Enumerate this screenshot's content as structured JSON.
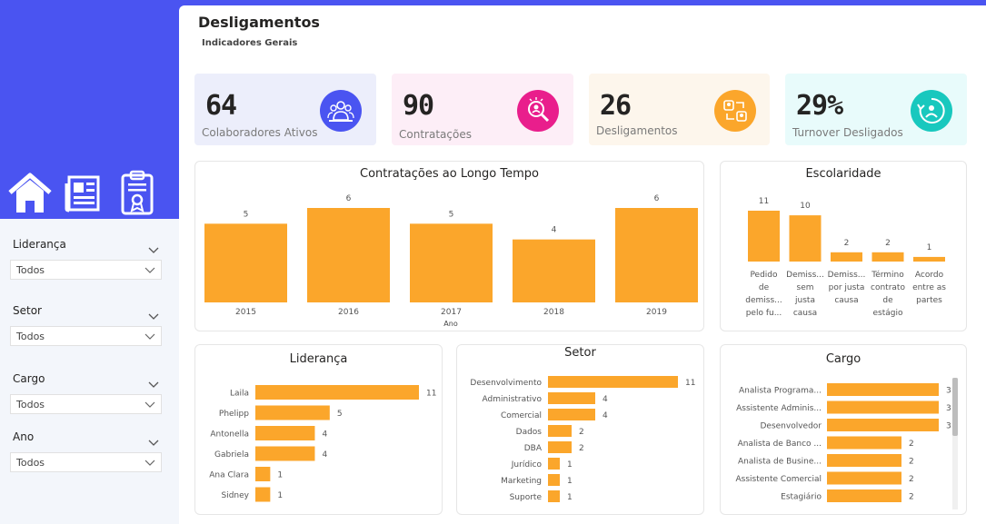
{
  "header": {
    "title": "Desligamentos",
    "subtitle": "Indicadores Gerais"
  },
  "nav": {
    "icons": [
      "home-icon",
      "newspaper-icon",
      "certificate-icon"
    ]
  },
  "filters": [
    {
      "label": "Liderança",
      "value": "Todos"
    },
    {
      "label": "Setor",
      "value": "Todos"
    },
    {
      "label": "Cargo",
      "value": "Todos"
    },
    {
      "label": "Ano",
      "value": "Todos"
    }
  ],
  "kpis": [
    {
      "value": "64",
      "label": "Colaboradores Ativos",
      "icon": "team-icon",
      "bg": "#eceefb",
      "iconColor": "#4a54f1"
    },
    {
      "value": "90",
      "label": "Contratações",
      "icon": "search-person-icon",
      "bg": "#fdeef7",
      "iconColor": "#e91e8c"
    },
    {
      "value": "26",
      "label": "Desligamentos",
      "icon": "exchange-people-icon",
      "bg": "#fdf6ec",
      "iconColor": "#fba62b"
    },
    {
      "value": "29%",
      "label": "Turnover Desligados",
      "icon": "refresh-person-icon",
      "bg": "#e8fbfb",
      "iconColor": "#18c8be"
    }
  ],
  "colors": {
    "bar": "#fba62b",
    "accent": "#4a54f1"
  },
  "chart_data": [
    {
      "type": "bar",
      "title": "Contratações ao Longo Tempo",
      "xlabel": "Ano",
      "categories": [
        "2015",
        "2016",
        "2017",
        "2018",
        "2019"
      ],
      "values": [
        5,
        6,
        5,
        4,
        6
      ],
      "ylim": [
        0,
        6
      ]
    },
    {
      "type": "bar",
      "title": "Escolaridade",
      "categories": [
        [
          "Pedido",
          "de",
          "demiss...",
          "pelo fu..."
        ],
        [
          "Demiss...",
          "sem",
          "justa",
          "causa"
        ],
        [
          "Demiss...",
          "por justa",
          "causa"
        ],
        [
          "Término",
          "contrato",
          "de",
          "estágio"
        ],
        [
          "Acordo",
          "entre as",
          "partes"
        ]
      ],
      "values": [
        11,
        10,
        2,
        2,
        1
      ],
      "ylim": [
        0,
        11
      ]
    },
    {
      "type": "bar",
      "orientation": "horizontal",
      "title": "Liderança",
      "categories": [
        "Laila",
        "Phelipp",
        "Antonella",
        "Gabriela",
        "Ana Clara",
        "Sidney"
      ],
      "values": [
        11,
        5,
        4,
        4,
        1,
        1
      ]
    },
    {
      "type": "bar",
      "orientation": "horizontal",
      "title": "Setor",
      "categories": [
        "Desenvolvimento",
        "Administrativo",
        "Comercial",
        "Dados",
        "DBA",
        "Jurídico",
        "Marketing",
        "Suporte"
      ],
      "values": [
        11,
        4,
        4,
        2,
        2,
        1,
        1,
        1
      ]
    },
    {
      "type": "bar",
      "orientation": "horizontal",
      "title": "Cargo",
      "categories": [
        "Analista Programa...",
        "Assistente Adminis...",
        "Desenvolvedor",
        "Analista de Banco ...",
        "Analista de Busine...",
        "Assistente Comercial",
        "Estagiário"
      ],
      "values": [
        3,
        3,
        3,
        2,
        2,
        2,
        2
      ]
    }
  ]
}
